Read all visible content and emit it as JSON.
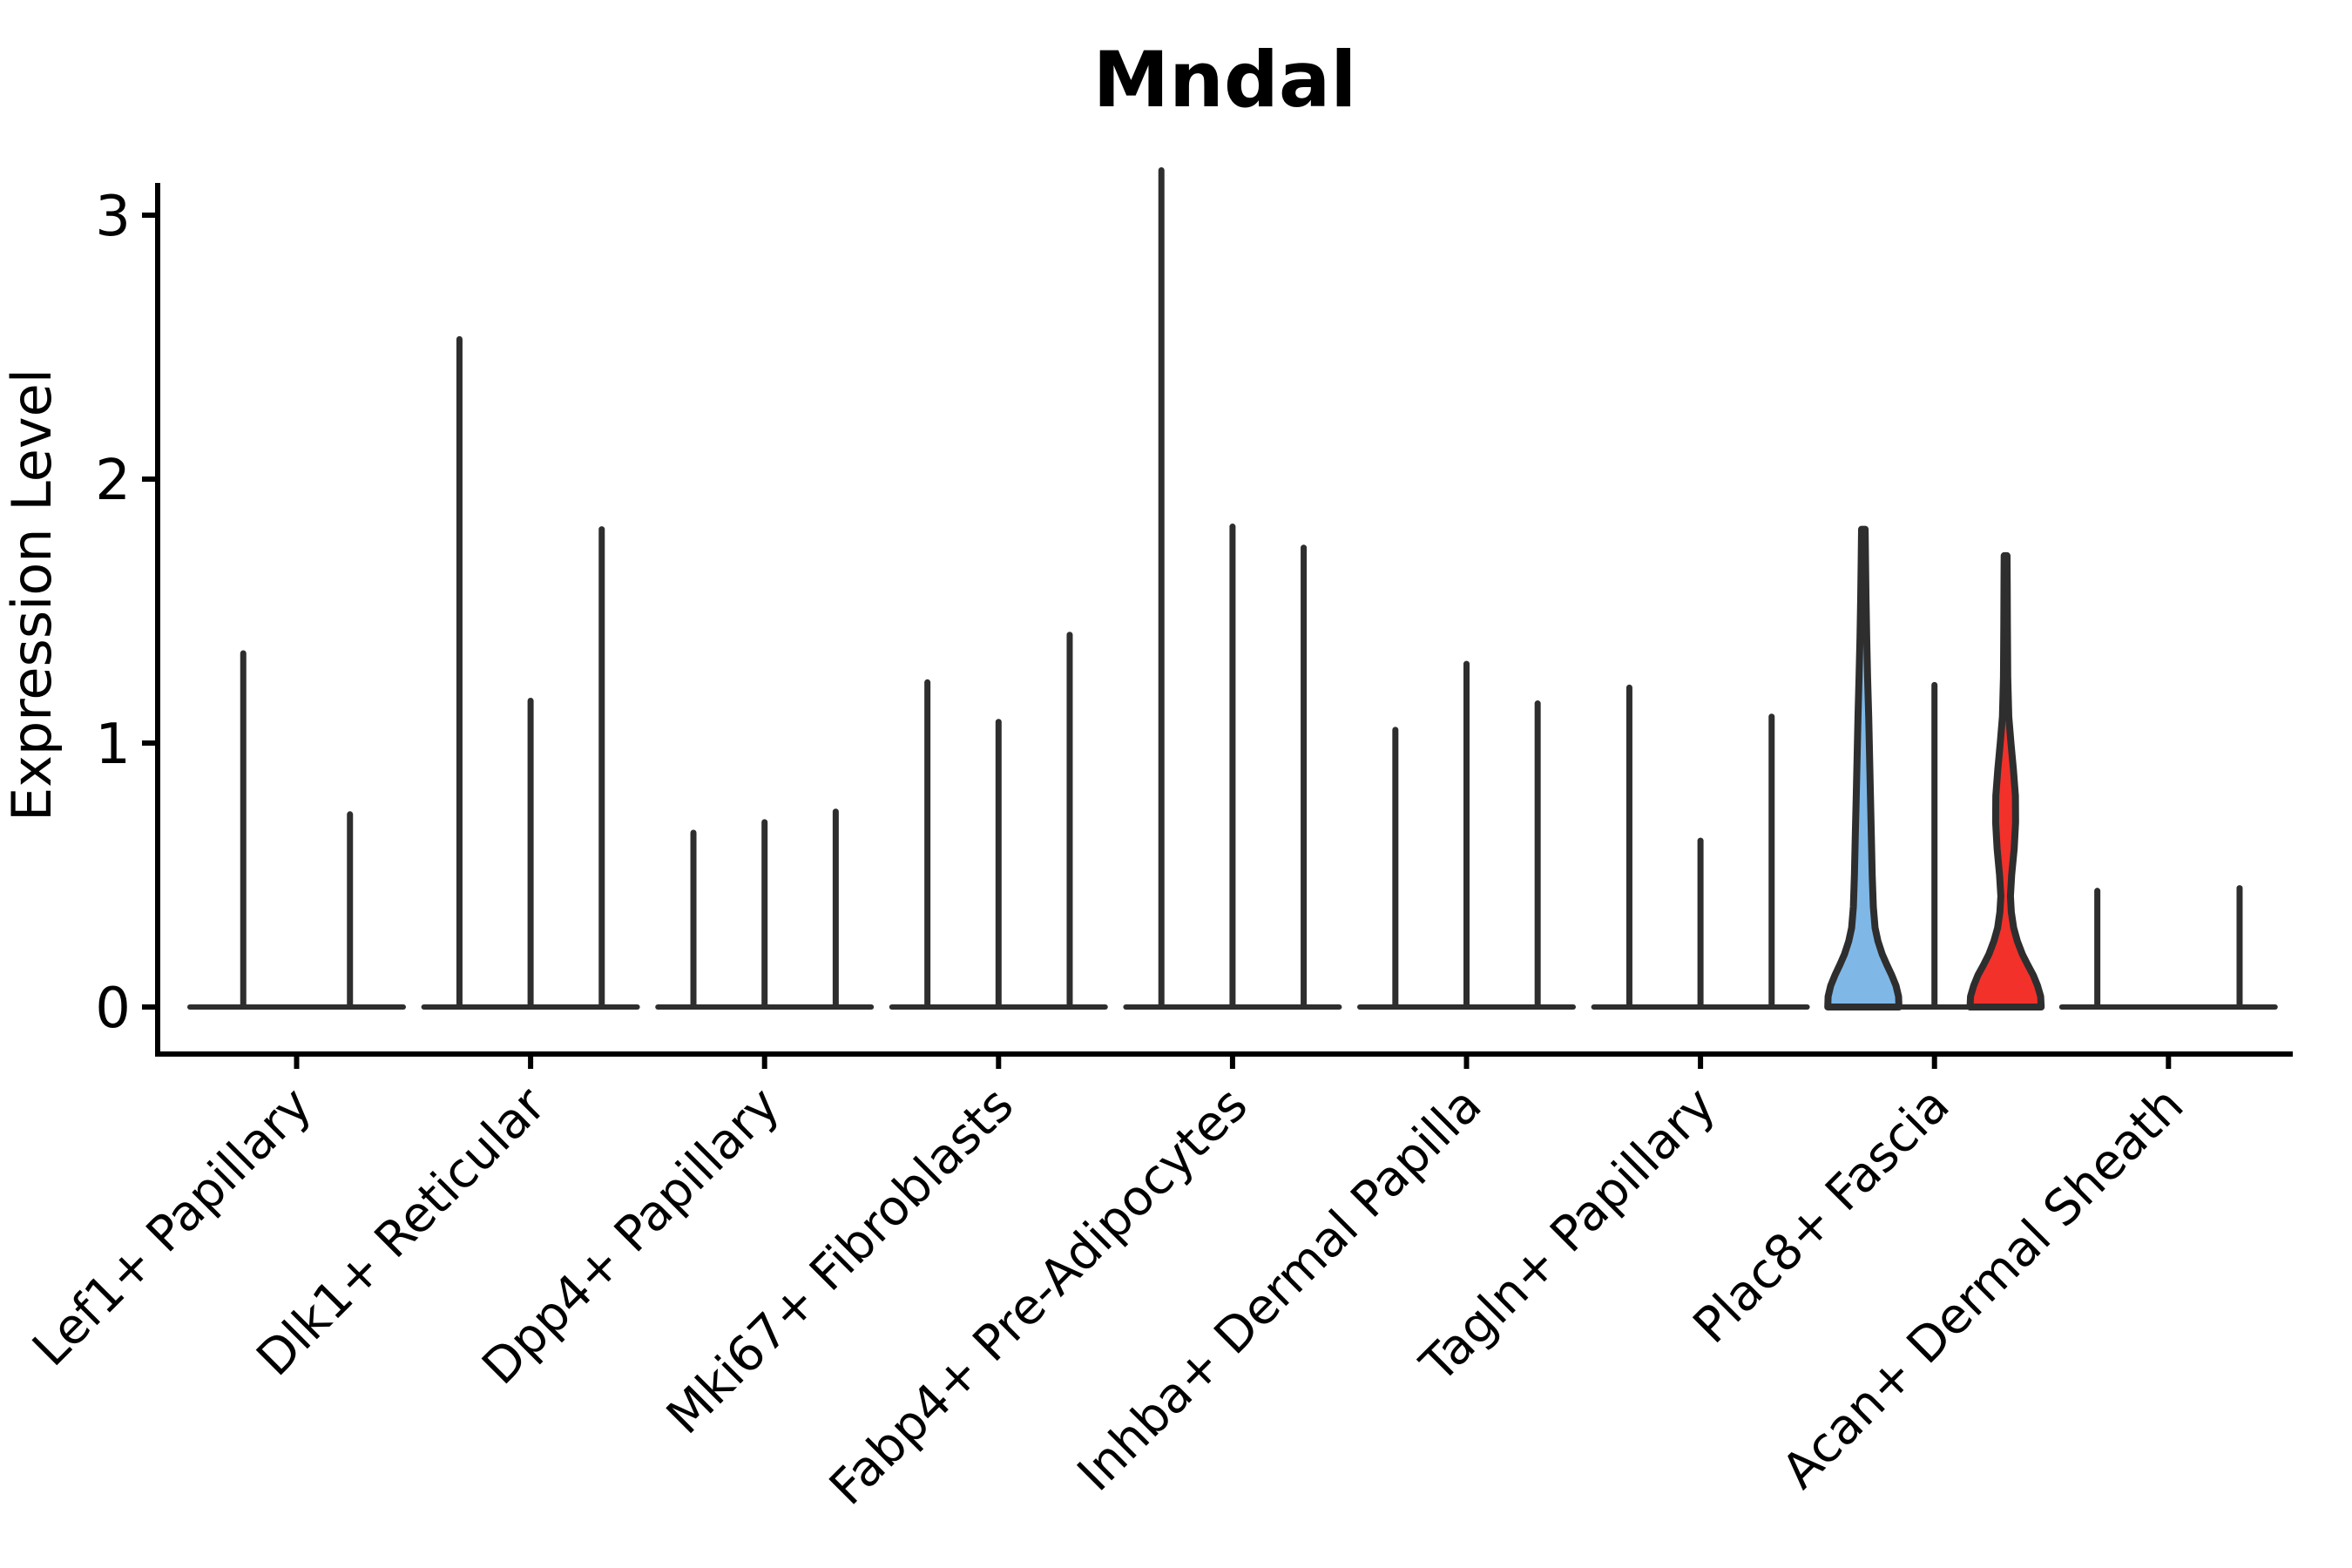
{
  "chart_data": {
    "type": "violin",
    "title": "Mndal",
    "ylabel": "Expression Level",
    "xlabel": "",
    "yticks": [
      "0",
      "1",
      "2",
      "3"
    ],
    "ylim": [
      -0.18,
      3.3
    ],
    "grid": false,
    "legend_position": "none",
    "colors": {
      "outline": "#2E2E2E",
      "highlight_blue": "#7FB8E6",
      "highlight_red": "#F2312B",
      "text": "#000000"
    },
    "categories": [
      "Lef1+ Papillary",
      "Dlk1+ Reticular",
      "Dpp4+ Papillary",
      "Mki67+ Fibroblasts",
      "Fabp4+ Pre-Adipocytes",
      "Inhba+ Dermal Papilla",
      "Tagln+ Papillary",
      "Plac8+ Fascia",
      "Acan+ Dermal Sheath"
    ],
    "groups": [
      {
        "category": "Lef1+ Papillary",
        "violins": [
          {
            "max": 1.34,
            "fill": null
          },
          {
            "max": 0.73,
            "fill": null
          }
        ]
      },
      {
        "category": "Dlk1+ Reticular",
        "violins": [
          {
            "max": 2.53,
            "fill": null
          },
          {
            "max": 1.16,
            "fill": null
          },
          {
            "max": 1.81,
            "fill": null
          }
        ]
      },
      {
        "category": "Dpp4+ Papillary",
        "violins": [
          {
            "max": 0.66,
            "fill": null
          },
          {
            "max": 0.7,
            "fill": null
          },
          {
            "max": 0.74,
            "fill": null
          }
        ]
      },
      {
        "category": "Mki67+ Fibroblasts",
        "violins": [
          {
            "max": 1.23,
            "fill": null
          },
          {
            "max": 1.08,
            "fill": null
          },
          {
            "max": 1.41,
            "fill": null
          }
        ]
      },
      {
        "category": "Fabp4+ Pre-Adipocytes",
        "violins": [
          {
            "max": 3.17,
            "fill": null
          },
          {
            "max": 1.82,
            "fill": null
          },
          {
            "max": 1.74,
            "fill": null
          }
        ]
      },
      {
        "category": "Inhba+ Dermal Papilla",
        "violins": [
          {
            "max": 1.05,
            "fill": null
          },
          {
            "max": 1.3,
            "fill": null
          },
          {
            "max": 1.15,
            "fill": null
          }
        ]
      },
      {
        "category": "Tagln+ Papillary",
        "violins": [
          {
            "max": 1.21,
            "fill": null
          },
          {
            "max": 0.63,
            "fill": null
          },
          {
            "max": 1.1,
            "fill": null
          }
        ]
      },
      {
        "category": "Plac8+ Fascia",
        "violins": [
          {
            "max": 1.81,
            "fill": "#7FB8E6",
            "shape_profile": [
              [
                0,
                1.0
              ],
              [
                0.04,
                0.99
              ],
              [
                0.08,
                0.92
              ],
              [
                0.12,
                0.8
              ],
              [
                0.16,
                0.66
              ],
              [
                0.2,
                0.53
              ],
              [
                0.25,
                0.41
              ],
              [
                0.3,
                0.33
              ],
              [
                0.38,
                0.28
              ],
              [
                0.5,
                0.25
              ],
              [
                0.65,
                0.225
              ],
              [
                0.8,
                0.2
              ],
              [
                0.95,
                0.175
              ],
              [
                1.1,
                0.15
              ],
              [
                1.25,
                0.12
              ],
              [
                1.4,
                0.095
              ],
              [
                1.55,
                0.075
              ],
              [
                1.7,
                0.06
              ],
              [
                1.81,
                0.05
              ]
            ]
          },
          {
            "max": 1.22,
            "fill": null
          },
          {
            "max": 1.71,
            "fill": "#F2312B",
            "shape_profile": [
              [
                0,
                1.0
              ],
              [
                0.04,
                0.985
              ],
              [
                0.08,
                0.9
              ],
              [
                0.12,
                0.78
              ],
              [
                0.16,
                0.62
              ],
              [
                0.2,
                0.47
              ],
              [
                0.25,
                0.33
              ],
              [
                0.3,
                0.225
              ],
              [
                0.36,
                0.16
              ],
              [
                0.42,
                0.135
              ],
              [
                0.5,
                0.17
              ],
              [
                0.6,
                0.24
              ],
              [
                0.7,
                0.28
              ],
              [
                0.8,
                0.275
              ],
              [
                0.9,
                0.22
              ],
              [
                1.0,
                0.15
              ],
              [
                1.1,
                0.09
              ],
              [
                1.25,
                0.06
              ],
              [
                1.45,
                0.05
              ],
              [
                1.6,
                0.045
              ],
              [
                1.71,
                0.04
              ]
            ]
          }
        ]
      },
      {
        "category": "Acan+ Dermal Sheath",
        "violins": [
          {
            "max": 0.44,
            "fill": null
          },
          {
            "max": 0.0,
            "fill": null
          },
          {
            "max": 0.45,
            "fill": null
          }
        ]
      }
    ]
  }
}
